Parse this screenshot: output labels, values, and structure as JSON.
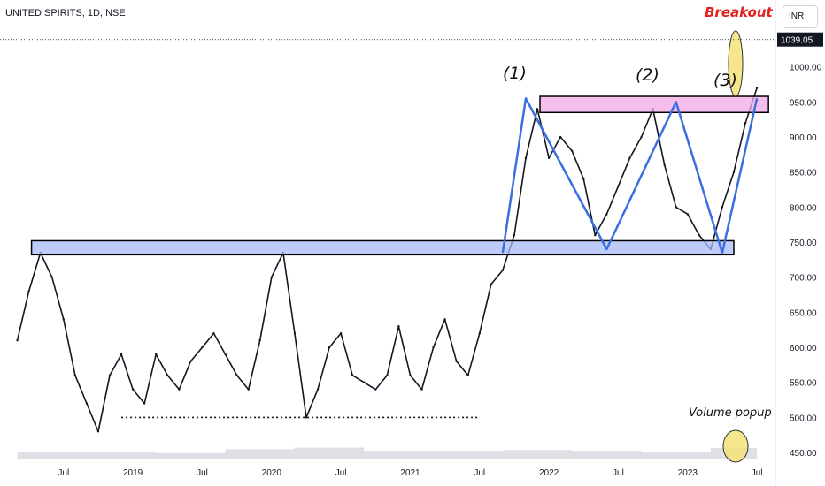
{
  "header": {
    "symbol_title": "UNITED SPIRITS, 1D, NSE",
    "currency_button": "INR"
  },
  "annotations": {
    "breakout": "Breakout",
    "volume_popup": "Volume popup",
    "peak1": "(1)",
    "peak2": "(2)",
    "peak3": "(3)"
  },
  "colors": {
    "candles": "#131722",
    "support_zone": "#a9b9f5",
    "resistance_zone": "#f1a8e6",
    "pattern_line": "#3a6fe0",
    "highlight_circle": "#f5e27a",
    "breakout_text": "#e0201b"
  },
  "chart_data": {
    "type": "line",
    "title": "UNITED SPIRITS, 1D, NSE",
    "xlabel": "",
    "ylabel": "",
    "ylim": [
      440,
      1045
    ],
    "y_ticks": [
      "450.00",
      "500.00",
      "550.00",
      "600.00",
      "650.00",
      "700.00",
      "750.00",
      "800.00",
      "850.00",
      "900.00",
      "950.00",
      "1000.00"
    ],
    "last_price": "1039.05",
    "x_ticks": [
      "Jul",
      "2019",
      "Jul",
      "2020",
      "Jul",
      "2021",
      "Jul",
      "2022",
      "Jul",
      "2023",
      "Jul"
    ],
    "x_tick_dates": [
      "2018-07",
      "2019-01",
      "2019-07",
      "2020-01",
      "2020-07",
      "2021-01",
      "2021-07",
      "2022-01",
      "2022-07",
      "2023-01",
      "2023-07"
    ],
    "series": [
      {
        "x": [
          "2018-03",
          "2018-04",
          "2018-05",
          "2018-06",
          "2018-07",
          "2018-08",
          "2018-09",
          "2018-10",
          "2018-11",
          "2018-12",
          "2019-01",
          "2019-02",
          "2019-03",
          "2019-04",
          "2019-05",
          "2019-06",
          "2019-07",
          "2019-08",
          "2019-09",
          "2019-10",
          "2019-11",
          "2019-12",
          "2020-01",
          "2020-02",
          "2020-03",
          "2020-04",
          "2020-05",
          "2020-06",
          "2020-07",
          "2020-08",
          "2020-09",
          "2020-10",
          "2020-11",
          "2020-12",
          "2021-01",
          "2021-02",
          "2021-03",
          "2021-04",
          "2021-05",
          "2021-06",
          "2021-07",
          "2021-08",
          "2021-09",
          "2021-10",
          "2021-11",
          "2021-12",
          "2022-01",
          "2022-02",
          "2022-03",
          "2022-04",
          "2022-05",
          "2022-06",
          "2022-07",
          "2022-08",
          "2022-09",
          "2022-10",
          "2022-11",
          "2022-12",
          "2023-01",
          "2023-02",
          "2023-03",
          "2023-04",
          "2023-05",
          "2023-06",
          "2023-07"
        ],
        "values": [
          610,
          680,
          735,
          700,
          640,
          560,
          520,
          480,
          560,
          590,
          540,
          520,
          590,
          560,
          540,
          580,
          600,
          620,
          590,
          560,
          540,
          610,
          700,
          735,
          620,
          500,
          540,
          600,
          620,
          560,
          550,
          540,
          560,
          630,
          560,
          540,
          600,
          640,
          580,
          560,
          620,
          690,
          710,
          760,
          870,
          940,
          870,
          900,
          880,
          840,
          760,
          790,
          830,
          870,
          900,
          940,
          860,
          800,
          790,
          760,
          740,
          800,
          850,
          920,
          970
        ]
      }
    ],
    "volume": {
      "ylim": [
        0,
        1
      ],
      "x": [
        "2018-03",
        "2018-09",
        "2019-03",
        "2019-09",
        "2020-03",
        "2020-09",
        "2021-03",
        "2021-09",
        "2022-03",
        "2022-09",
        "2023-03",
        "2023-07"
      ],
      "values": [
        0.2,
        0.25,
        0.2,
        0.2,
        0.45,
        0.3,
        0.25,
        0.3,
        0.3,
        0.25,
        0.22,
        0.5
      ]
    },
    "zones": [
      {
        "type": "support",
        "y_low": 732,
        "y_high": 752,
        "x_start": "2018-03",
        "x_end": "2023-05"
      },
      {
        "type": "resistance",
        "y_low": 935,
        "y_high": 958,
        "x_start": "2021-11",
        "x_end": "2023-08"
      }
    ],
    "pattern_points": [
      {
        "x": "2021-09",
        "y": 735
      },
      {
        "x": "2021-11",
        "y": 955
      },
      {
        "x": "2022-06",
        "y": 740
      },
      {
        "x": "2022-12",
        "y": 950
      },
      {
        "x": "2023-04",
        "y": 735
      },
      {
        "x": "2023-07",
        "y": 955
      }
    ],
    "baseline_y": 500,
    "baseline_x": [
      "2018-12",
      "2021-07"
    ]
  }
}
